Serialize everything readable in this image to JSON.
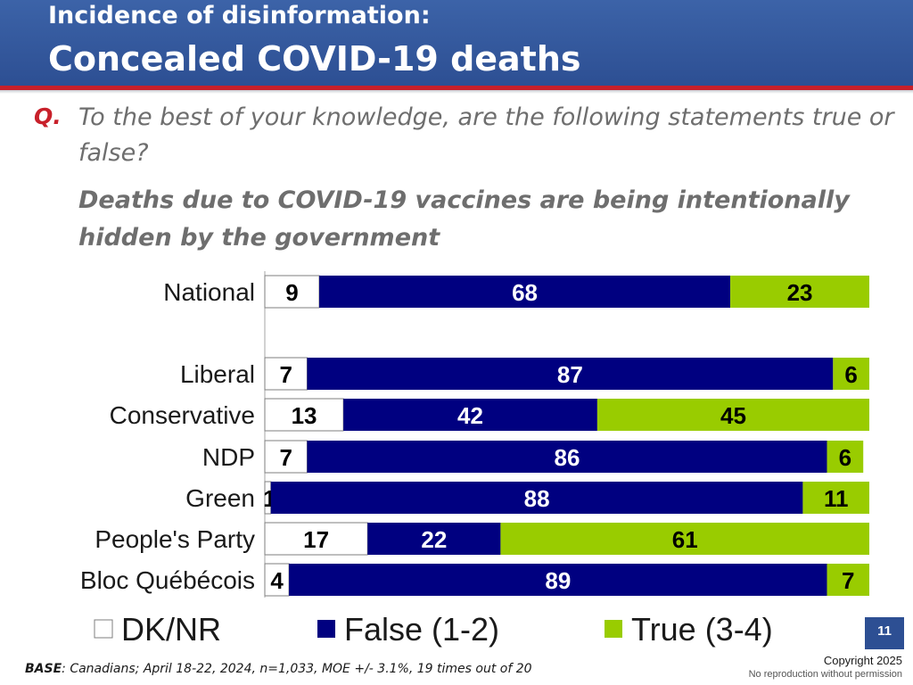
{
  "header": {
    "title_line1": "Incidence of disinformation:",
    "title_line2": "Concealed COVID-19 deaths",
    "band_color": "#2d4f93",
    "rule_color": "#c8202a"
  },
  "question": {
    "marker": "Q.",
    "text": "To the best of your knowledge, are the following statements true or false?",
    "statement": "Deaths due to COVID-19 vaccines are being intentionally hidden by the government"
  },
  "chart_data": {
    "type": "bar",
    "orientation": "horizontal",
    "stacked": true,
    "categories": [
      "National",
      "",
      "Liberal",
      "Conservative",
      "NDP",
      "Green",
      "People's Party",
      "Bloc Québécois"
    ],
    "series": [
      {
        "name": "DK/NR",
        "color": "#ffffff",
        "values": [
          9,
          null,
          7,
          13,
          7,
          1,
          17,
          4
        ]
      },
      {
        "name": "False (1-2)",
        "color": "#000080",
        "values": [
          68,
          null,
          87,
          42,
          86,
          88,
          22,
          89
        ]
      },
      {
        "name": "True (3-4)",
        "color": "#99cc00",
        "values": [
          23,
          null,
          6,
          45,
          6,
          11,
          61,
          7
        ]
      }
    ],
    "xlim": [
      0,
      100
    ],
    "legend_position": "bottom"
  },
  "footer": {
    "base_label": "BASE",
    "base_text": ": Canadians; April 18-22, 2024, n=1,033, MOE +/- 3.1%, 19 times out of 20",
    "page_number": "11",
    "copyright": "Copyright 2025",
    "copyright_note": "No reproduction without permission"
  }
}
